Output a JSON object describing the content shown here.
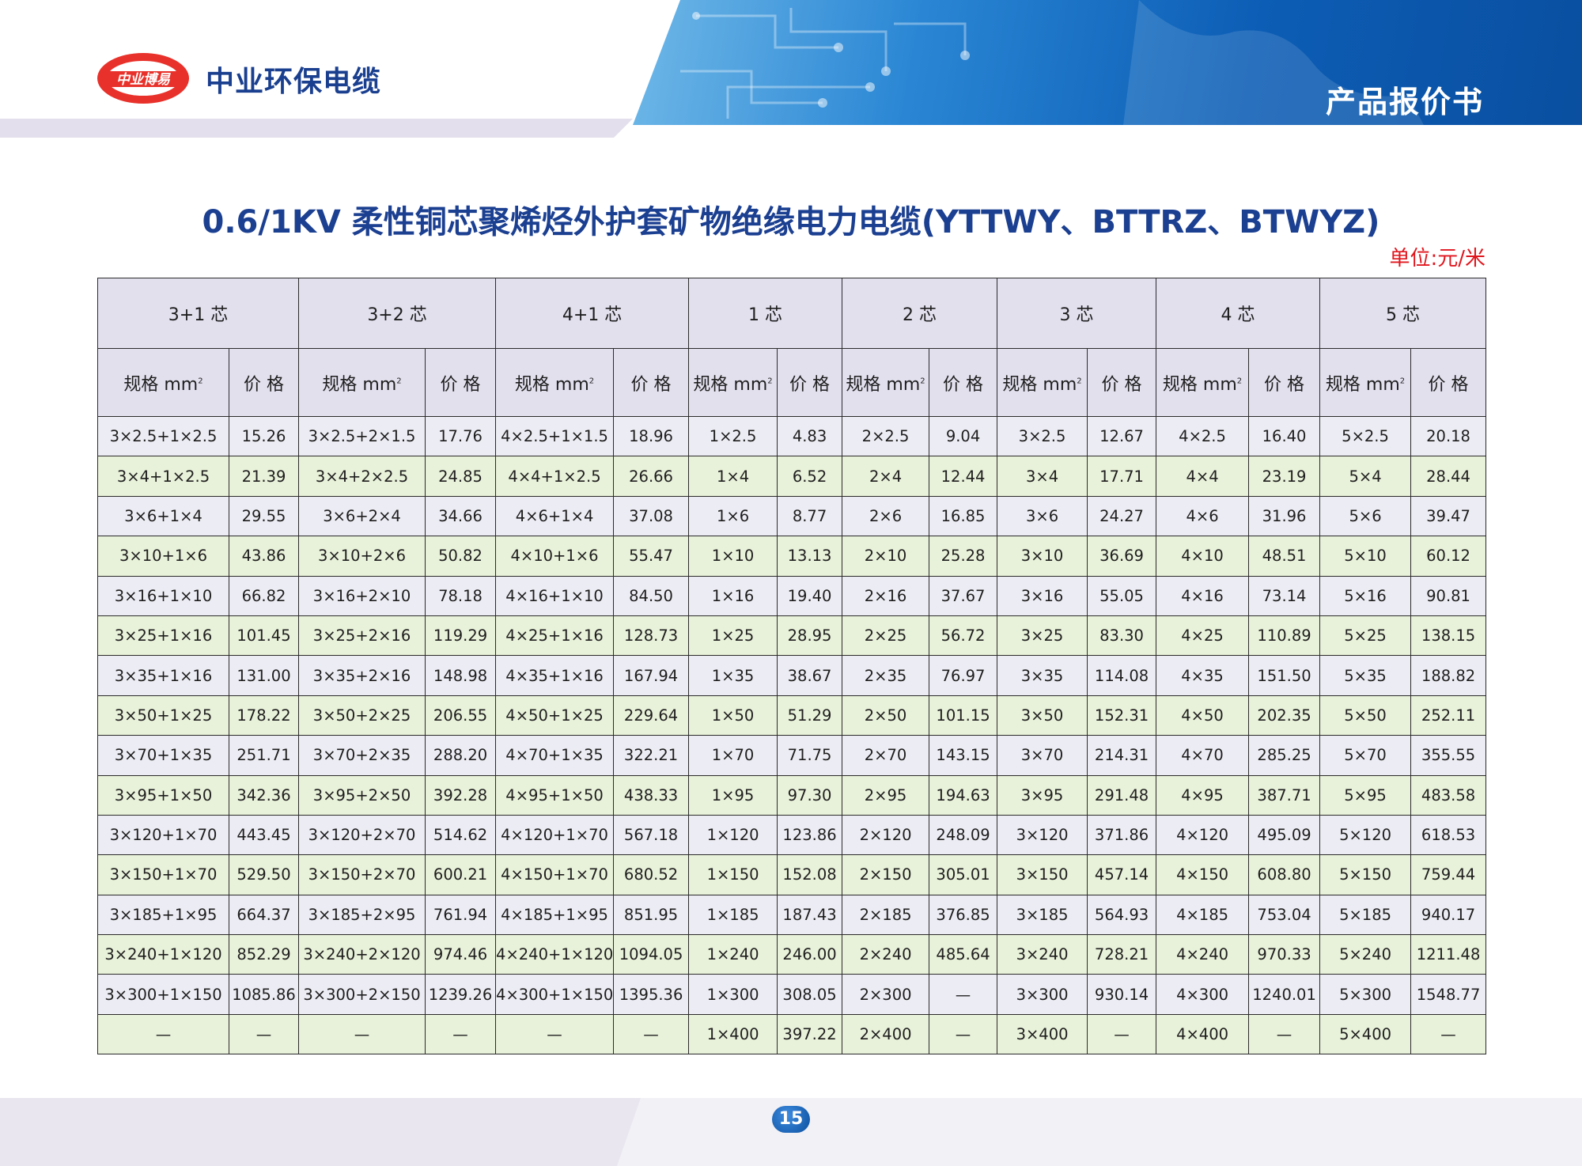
{
  "header": {
    "brand": "中业环保电缆",
    "doc_title": "产品报价书",
    "logo_text": "中业博易"
  },
  "title": "0.6/1KV 柔性铜芯聚烯烃外护套矿物绝缘电力电缆(YTTWY、BTTRZ、BTWYZ)",
  "unit": "单位:元/米",
  "table": {
    "groups": [
      "3+1 芯",
      "3+2 芯",
      "4+1 芯",
      "1 芯",
      "2 芯",
      "3 芯",
      "4 芯",
      "5 芯"
    ],
    "spec_label": "规格 mm",
    "price_label": "价 格",
    "rows": [
      [
        "3×2.5+1×2.5",
        "15.26",
        "3×2.5+2×1.5",
        "17.76",
        "4×2.5+1×1.5",
        "18.96",
        "1×2.5",
        "4.83",
        "2×2.5",
        "9.04",
        "3×2.5",
        "12.67",
        "4×2.5",
        "16.40",
        "5×2.5",
        "20.18"
      ],
      [
        "3×4+1×2.5",
        "21.39",
        "3×4+2×2.5",
        "24.85",
        "4×4+1×2.5",
        "26.66",
        "1×4",
        "6.52",
        "2×4",
        "12.44",
        "3×4",
        "17.71",
        "4×4",
        "23.19",
        "5×4",
        "28.44"
      ],
      [
        "3×6+1×4",
        "29.55",
        "3×6+2×4",
        "34.66",
        "4×6+1×4",
        "37.08",
        "1×6",
        "8.77",
        "2×6",
        "16.85",
        "3×6",
        "24.27",
        "4×6",
        "31.96",
        "5×6",
        "39.47"
      ],
      [
        "3×10+1×6",
        "43.86",
        "3×10+2×6",
        "50.82",
        "4×10+1×6",
        "55.47",
        "1×10",
        "13.13",
        "2×10",
        "25.28",
        "3×10",
        "36.69",
        "4×10",
        "48.51",
        "5×10",
        "60.12"
      ],
      [
        "3×16+1×10",
        "66.82",
        "3×16+2×10",
        "78.18",
        "4×16+1×10",
        "84.50",
        "1×16",
        "19.40",
        "2×16",
        "37.67",
        "3×16",
        "55.05",
        "4×16",
        "73.14",
        "5×16",
        "90.81"
      ],
      [
        "3×25+1×16",
        "101.45",
        "3×25+2×16",
        "119.29",
        "4×25+1×16",
        "128.73",
        "1×25",
        "28.95",
        "2×25",
        "56.72",
        "3×25",
        "83.30",
        "4×25",
        "110.89",
        "5×25",
        "138.15"
      ],
      [
        "3×35+1×16",
        "131.00",
        "3×35+2×16",
        "148.98",
        "4×35+1×16",
        "167.94",
        "1×35",
        "38.67",
        "2×35",
        "76.97",
        "3×35",
        "114.08",
        "4×35",
        "151.50",
        "5×35",
        "188.82"
      ],
      [
        "3×50+1×25",
        "178.22",
        "3×50+2×25",
        "206.55",
        "4×50+1×25",
        "229.64",
        "1×50",
        "51.29",
        "2×50",
        "101.15",
        "3×50",
        "152.31",
        "4×50",
        "202.35",
        "5×50",
        "252.11"
      ],
      [
        "3×70+1×35",
        "251.71",
        "3×70+2×35",
        "288.20",
        "4×70+1×35",
        "322.21",
        "1×70",
        "71.75",
        "2×70",
        "143.15",
        "3×70",
        "214.31",
        "4×70",
        "285.25",
        "5×70",
        "355.55"
      ],
      [
        "3×95+1×50",
        "342.36",
        "3×95+2×50",
        "392.28",
        "4×95+1×50",
        "438.33",
        "1×95",
        "97.30",
        "2×95",
        "194.63",
        "3×95",
        "291.48",
        "4×95",
        "387.71",
        "5×95",
        "483.58"
      ],
      [
        "3×120+1×70",
        "443.45",
        "3×120+2×70",
        "514.62",
        "4×120+1×70",
        "567.18",
        "1×120",
        "123.86",
        "2×120",
        "248.09",
        "3×120",
        "371.86",
        "4×120",
        "495.09",
        "5×120",
        "618.53"
      ],
      [
        "3×150+1×70",
        "529.50",
        "3×150+2×70",
        "600.21",
        "4×150+1×70",
        "680.52",
        "1×150",
        "152.08",
        "2×150",
        "305.01",
        "3×150",
        "457.14",
        "4×150",
        "608.80",
        "5×150",
        "759.44"
      ],
      [
        "3×185+1×95",
        "664.37",
        "3×185+2×95",
        "761.94",
        "4×185+1×95",
        "851.95",
        "1×185",
        "187.43",
        "2×185",
        "376.85",
        "3×185",
        "564.93",
        "4×185",
        "753.04",
        "5×185",
        "940.17"
      ],
      [
        "3×240+1×120",
        "852.29",
        "3×240+2×120",
        "974.46",
        "4×240+1×120",
        "1094.05",
        "1×240",
        "246.00",
        "2×240",
        "485.64",
        "3×240",
        "728.21",
        "4×240",
        "970.33",
        "5×240",
        "1211.48"
      ],
      [
        "3×300+1×150",
        "1085.86",
        "3×300+2×150",
        "1239.26",
        "4×300+1×150",
        "1395.36",
        "1×300",
        "308.05",
        "2×300",
        "—",
        "3×300",
        "930.14",
        "4×300",
        "1240.01",
        "5×300",
        "1548.77"
      ],
      [
        "—",
        "—",
        "—",
        "—",
        "—",
        "—",
        "1×400",
        "397.22",
        "2×400",
        "—",
        "3×400",
        "—",
        "4×400",
        "—",
        "5×400",
        "—"
      ]
    ]
  },
  "footer": {
    "page_number": "15"
  }
}
